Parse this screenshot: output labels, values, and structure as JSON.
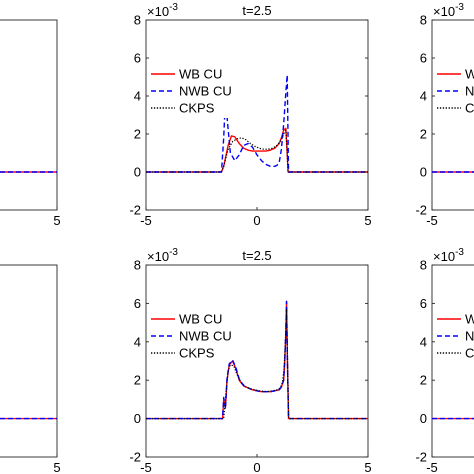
{
  "chart_data": [
    {
      "type": "line",
      "panel": "top-left",
      "title": "",
      "xlim": [
        -5,
        5
      ],
      "ylim": [
        -2,
        8
      ],
      "xticks": [
        "5"
      ],
      "yticks": [],
      "legend": null,
      "series": [
        {
          "name": "WB CU",
          "color": "#ff0000",
          "dash": "solid",
          "x": [
            -5,
            5
          ],
          "y": [
            0,
            0
          ]
        },
        {
          "name": "NWB CU",
          "color": "#0000ff",
          "dash": "dashed",
          "x": [
            -5,
            5
          ],
          "y": [
            0,
            0
          ]
        }
      ]
    },
    {
      "type": "line",
      "panel": "top-center",
      "title": "t=2.5",
      "exponent": "×10",
      "exponent_power": "-3",
      "xlim": [
        -5,
        5
      ],
      "ylim": [
        -2,
        8
      ],
      "xticks": [
        "-5",
        "0",
        "5"
      ],
      "yticks": [
        "-2",
        "0",
        "2",
        "4",
        "6",
        "8"
      ],
      "legend": {
        "position": "upper-left",
        "entries": [
          "WB CU",
          "NWB CU",
          "CKPS"
        ]
      },
      "series": [
        {
          "name": "WB CU",
          "color": "#ff0000",
          "dash": "solid",
          "x": [
            -5,
            -1.6,
            -1.5,
            -1.3,
            -1.15,
            -1.0,
            -0.8,
            -0.6,
            -0.4,
            -0.2,
            0.0,
            0.2,
            0.4,
            0.6,
            0.8,
            1.0,
            1.1,
            1.2,
            1.3,
            1.35,
            1.4,
            5
          ],
          "y": [
            0,
            0,
            0.3,
            1.4,
            1.9,
            1.85,
            1.5,
            1.25,
            1.15,
            1.1,
            1.1,
            1.1,
            1.1,
            1.15,
            1.25,
            1.5,
            1.8,
            2.2,
            2.3,
            1.2,
            0,
            0
          ]
        },
        {
          "name": "NWB CU",
          "color": "#0000ff",
          "dash": "dashed",
          "x": [
            -5,
            -1.6,
            -1.5,
            -1.42,
            -1.32,
            -1.2,
            -1.0,
            -0.8,
            -0.6,
            -0.4,
            -0.2,
            0.0,
            0.2,
            0.4,
            0.6,
            0.8,
            0.9,
            1.0,
            1.1,
            1.2,
            1.3,
            1.36,
            1.42,
            5
          ],
          "y": [
            0,
            0,
            1.8,
            3.9,
            2.5,
            1.0,
            0.6,
            0.9,
            1.4,
            1.5,
            1.3,
            0.9,
            0.6,
            0.4,
            0.3,
            0.3,
            0.35,
            0.5,
            1.2,
            2.5,
            4.2,
            5.1,
            0,
            0
          ]
        },
        {
          "name": "CKPS",
          "color": "#000000",
          "dash": "dotted",
          "x": [
            -5,
            -1.6,
            -1.5,
            -1.3,
            -1.1,
            -0.9,
            -0.7,
            -0.5,
            -0.3,
            -0.1,
            0.1,
            0.3,
            0.5,
            0.7,
            0.9,
            1.1,
            1.2,
            1.3,
            1.35,
            1.4,
            5
          ],
          "y": [
            0,
            0,
            0.3,
            1.2,
            1.6,
            1.75,
            1.8,
            1.7,
            1.5,
            1.35,
            1.25,
            1.2,
            1.2,
            1.25,
            1.4,
            1.7,
            2.0,
            2.2,
            1.2,
            0,
            0
          ]
        }
      ]
    },
    {
      "type": "line",
      "panel": "top-right",
      "title": "",
      "exponent": "×10",
      "exponent_power": "-3",
      "xlim": [
        -5,
        5
      ],
      "ylim": [
        -2,
        8
      ],
      "xticks": [
        "-5"
      ],
      "yticks": [
        "-2",
        "0",
        "2",
        "4",
        "6",
        "8"
      ],
      "legend": {
        "position": "upper-left",
        "entries": [
          "WB",
          "NW",
          "CK"
        ]
      },
      "series": [
        {
          "name": "WB CU",
          "color": "#ff0000",
          "dash": "solid",
          "x": [
            -5,
            5
          ],
          "y": [
            0,
            0
          ]
        },
        {
          "name": "NWB CU",
          "color": "#0000ff",
          "dash": "dashed",
          "x": [
            -5,
            5
          ],
          "y": [
            0,
            0
          ]
        }
      ]
    },
    {
      "type": "line",
      "panel": "bottom-left",
      "title": "",
      "xlim": [
        -5,
        5
      ],
      "ylim": [
        -2,
        8
      ],
      "xticks": [
        "5"
      ],
      "yticks": [],
      "legend": null,
      "series": [
        {
          "name": "WB CU",
          "color": "#ff0000",
          "dash": "solid",
          "x": [
            -5,
            5
          ],
          "y": [
            0,
            0
          ]
        },
        {
          "name": "NWB CU",
          "color": "#0000ff",
          "dash": "dashed",
          "x": [
            -5,
            5
          ],
          "y": [
            0,
            0
          ]
        }
      ]
    },
    {
      "type": "line",
      "panel": "bottom-center",
      "title": "t=2.5",
      "exponent": "×10",
      "exponent_power": "-3",
      "xlim": [
        -5,
        5
      ],
      "ylim": [
        -2,
        8
      ],
      "xticks": [
        "-5",
        "0",
        "5"
      ],
      "yticks": [
        "-2",
        "0",
        "2",
        "4",
        "6",
        "8"
      ],
      "legend": {
        "position": "upper-left",
        "entries": [
          "WB CU",
          "NWB CU",
          "CKPS"
        ]
      },
      "series": [
        {
          "name": "WB CU",
          "color": "#ff0000",
          "dash": "solid",
          "x": [
            -5,
            -1.55,
            -1.5,
            -1.42,
            -1.35,
            -1.25,
            -1.1,
            -0.95,
            -0.8,
            -0.6,
            -0.4,
            -0.2,
            0.0,
            0.2,
            0.4,
            0.6,
            0.8,
            1.0,
            1.1,
            1.2,
            1.25,
            1.3,
            1.33,
            1.37,
            1.42,
            5
          ],
          "y": [
            0,
            0,
            1.0,
            0.6,
            2.0,
            2.8,
            3.0,
            2.6,
            2.0,
            1.7,
            1.6,
            1.5,
            1.45,
            1.4,
            1.4,
            1.4,
            1.45,
            1.5,
            1.65,
            2.0,
            3.0,
            4.5,
            6.1,
            3.0,
            0,
            0
          ]
        },
        {
          "name": "NWB CU",
          "color": "#0000ff",
          "dash": "dashed",
          "x": [
            -5,
            -1.55,
            -1.5,
            -1.42,
            -1.35,
            -1.25,
            -1.1,
            -0.95,
            -0.8,
            -0.6,
            -0.4,
            -0.2,
            0.0,
            0.2,
            0.4,
            0.6,
            0.8,
            1.0,
            1.1,
            1.2,
            1.25,
            1.3,
            1.33,
            1.37,
            1.42,
            5
          ],
          "y": [
            0,
            0,
            1.1,
            0.5,
            2.1,
            2.85,
            3.05,
            2.65,
            2.05,
            1.72,
            1.6,
            1.5,
            1.45,
            1.4,
            1.4,
            1.4,
            1.45,
            1.5,
            1.65,
            2.0,
            3.0,
            4.6,
            6.1,
            3.0,
            0,
            0
          ]
        },
        {
          "name": "CKPS",
          "color": "#000000",
          "dash": "dotted",
          "x": [
            -5,
            -1.5,
            -1.4,
            -1.3,
            -1.2,
            -1.05,
            -0.9,
            -0.7,
            -0.5,
            -0.3,
            -0.1,
            0.1,
            0.3,
            0.5,
            0.7,
            0.9,
            1.05,
            1.15,
            1.22,
            1.28,
            1.33,
            1.38,
            1.43,
            5
          ],
          "y": [
            0,
            0,
            1.3,
            2.5,
            2.8,
            2.75,
            2.3,
            1.85,
            1.65,
            1.55,
            1.5,
            1.45,
            1.42,
            1.42,
            1.45,
            1.5,
            1.6,
            1.9,
            2.6,
            4.0,
            5.7,
            2.8,
            0,
            0
          ]
        }
      ]
    },
    {
      "type": "line",
      "panel": "bottom-right",
      "title": "",
      "exponent": "×10",
      "exponent_power": "-3",
      "xlim": [
        -5,
        5
      ],
      "ylim": [
        -2,
        8
      ],
      "xticks": [
        "-5"
      ],
      "yticks": [
        "-2",
        "0",
        "2",
        "4",
        "6",
        "8"
      ],
      "legend": {
        "position": "upper-left",
        "entries": [
          "W",
          "N",
          "C"
        ]
      },
      "series": [
        {
          "name": "WB CU",
          "color": "#ff0000",
          "dash": "solid",
          "x": [
            -5,
            5
          ],
          "y": [
            0,
            0
          ]
        },
        {
          "name": "NWB CU",
          "color": "#0000ff",
          "dash": "dashed",
          "x": [
            -5,
            5
          ],
          "y": [
            0,
            0
          ]
        }
      ]
    }
  ]
}
